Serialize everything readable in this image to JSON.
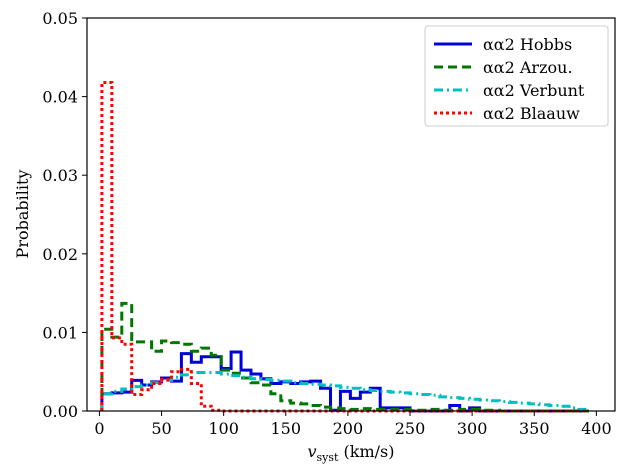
{
  "chart_data": {
    "type": "line",
    "step": true,
    "xlabel": "v",
    "xlabel_sub": "syst",
    "xlabel_unit": " (km/s)",
    "ylabel": "Probability",
    "xlim": [
      -10,
      415
    ],
    "ylim": [
      0,
      0.05
    ],
    "xticks": [
      0,
      50,
      100,
      150,
      200,
      250,
      300,
      350,
      400
    ],
    "yticks": [
      0.0,
      0.01,
      0.02,
      0.03,
      0.04,
      0.05
    ],
    "ytick_labels": [
      "0.00",
      "0.01",
      "0.02",
      "0.03",
      "0.04",
      "0.05"
    ],
    "legend_position": "top-right",
    "grid": false,
    "bin_edges": [
      2,
      10,
      18,
      26,
      34,
      42,
      50,
      58,
      66,
      74,
      82,
      90,
      98,
      106,
      114,
      122,
      130,
      138,
      146,
      154,
      162,
      170,
      178,
      186,
      194,
      202,
      210,
      218,
      226,
      234,
      242,
      250,
      258,
      266,
      274,
      282,
      290,
      298,
      306,
      314,
      322,
      330,
      338,
      346,
      354,
      362,
      370,
      378,
      386,
      394
    ],
    "series": [
      {
        "name": "αα2 Hobbs",
        "color": "#0000dd",
        "dash": "",
        "width": 3,
        "values": [
          0.0022,
          0.0023,
          0.0024,
          0.0039,
          0.0033,
          0.0037,
          0.0042,
          0.0038,
          0.0073,
          0.0062,
          0.0069,
          0.0069,
          0.0054,
          0.0075,
          0.0052,
          0.0047,
          0.0041,
          0.0035,
          0.0037,
          0.0035,
          0.0037,
          0.0038,
          0.0029,
          0.0001,
          0.0025,
          0.0016,
          0.0024,
          0.0029,
          0.0004,
          0.0004,
          0.0004,
          0.0,
          0.0,
          0.0,
          0.0,
          0.0007,
          0.0,
          0.0004,
          0.0,
          0.0,
          0.0,
          0.0,
          0.0,
          0.0,
          0.0,
          0.0,
          0.0,
          0.0,
          0.0
        ]
      },
      {
        "name": "αα2 Arzou.",
        "color": "#007700",
        "dash": "9,5",
        "width": 3,
        "values": [
          0.0104,
          0.0094,
          0.0137,
          0.0088,
          0.0088,
          0.0076,
          0.0089,
          0.0087,
          0.0085,
          0.0076,
          0.008,
          0.0071,
          0.0052,
          0.0048,
          0.0042,
          0.0036,
          0.0033,
          0.0022,
          0.0013,
          0.001,
          0.0009,
          0.0007,
          0.0005,
          0.0004,
          0.0003,
          0.0002,
          0.0003,
          0.0002,
          0.0002,
          0.0002,
          0.0002,
          0.0001,
          0.0001,
          0.0002,
          0.0001,
          0.0001,
          0.0002,
          0.0002,
          0.0001,
          0.0001,
          0.0,
          0.0,
          0.0,
          0.0,
          0.0,
          0.0,
          0.0,
          0.0,
          0.0
        ]
      },
      {
        "name": "αα2 Verbunt",
        "color": "#00bfbf",
        "dash": "9,4,2,4",
        "width": 3,
        "values": [
          0.0022,
          0.0025,
          0.0028,
          0.0031,
          0.0033,
          0.0036,
          0.0039,
          0.0043,
          0.0046,
          0.0049,
          0.0049,
          0.0049,
          0.0047,
          0.0045,
          0.0043,
          0.0041,
          0.004,
          0.0039,
          0.0038,
          0.0036,
          0.0035,
          0.0034,
          0.0033,
          0.0032,
          0.003,
          0.0029,
          0.0027,
          0.0026,
          0.0025,
          0.0024,
          0.0023,
          0.0022,
          0.0021,
          0.002,
          0.0018,
          0.0017,
          0.0016,
          0.0015,
          0.0014,
          0.0013,
          0.0012,
          0.0011,
          0.001,
          0.0009,
          0.0008,
          0.0007,
          0.0006,
          0.0004,
          0.0002
        ]
      },
      {
        "name": "αα2 Blaauw",
        "color": "#ff0000",
        "dash": "3,3",
        "width": 3,
        "values": [
          0.0418,
          0.0093,
          0.0085,
          0.0021,
          0.0027,
          0.0035,
          0.004,
          0.005,
          0.0053,
          0.0035,
          0.0006,
          0.0001,
          0.0,
          0.0,
          0.0,
          0.0,
          0.0,
          0.0,
          0.0,
          0.0,
          0.0,
          0.0,
          0.0,
          0.0,
          0.0,
          0.0,
          0.0,
          0.0,
          0.0,
          0.0,
          0.0,
          0.0,
          0.0,
          0.0,
          0.0,
          0.0,
          0.0,
          0.0,
          0.0,
          0.0,
          0.0,
          0.0,
          0.0,
          0.0,
          0.0,
          0.0,
          0.0,
          0.0,
          0.0
        ]
      }
    ]
  }
}
